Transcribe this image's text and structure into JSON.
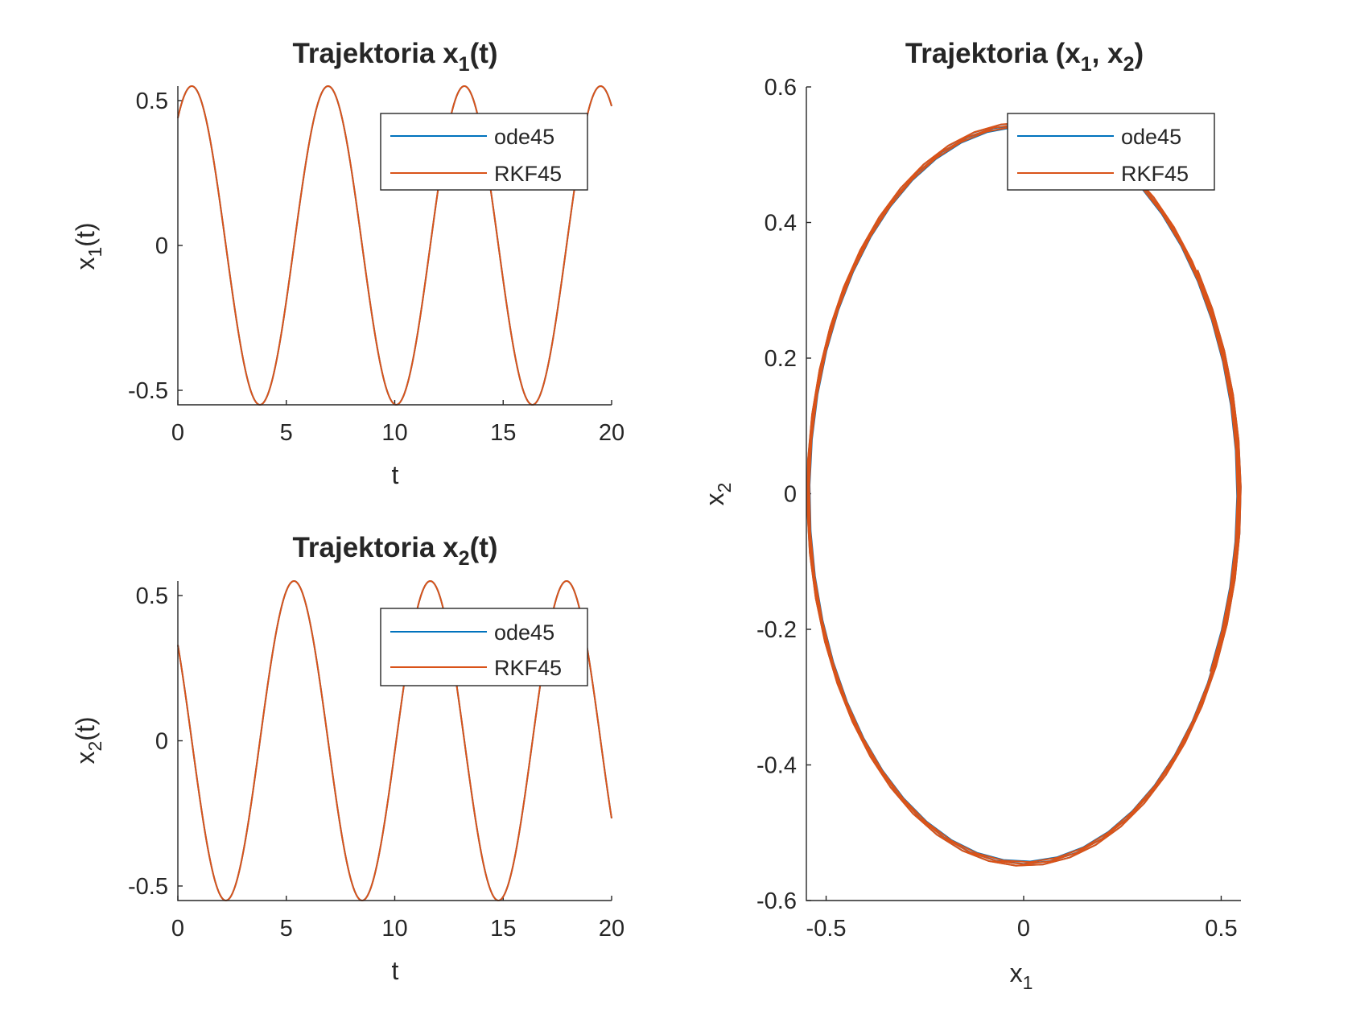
{
  "colors": {
    "ode45": "#0072BD",
    "RKF45": "#D95319",
    "axis": "#262626"
  },
  "chart_data": [
    {
      "type": "line",
      "title_main": "Trajektoria x",
      "title_sub": "1",
      "title_tail": "(t)",
      "xlabel": "t",
      "ylabel_main": "x",
      "ylabel_sub": "1",
      "ylabel_tail": "(t)",
      "xlim": [
        0,
        20
      ],
      "ylim": [
        -0.55,
        0.55
      ],
      "xticks": [
        0,
        5,
        10,
        15,
        20
      ],
      "xtick_labels": [
        "0",
        "5",
        "10",
        "15",
        "20"
      ],
      "yticks": [
        -0.5,
        0,
        0.5
      ],
      "ytick_labels": [
        "-0.5",
        "0",
        "0.5"
      ],
      "legend_position": "top-right",
      "signal": {
        "amplitude": 0.55,
        "omega": 1.0,
        "initial": 0.4,
        "initial_other": 0.3,
        "component": "x1"
      },
      "series": [
        {
          "name": "ode45",
          "color": "#0072BD"
        },
        {
          "name": "RKF45",
          "color": "#D95319"
        }
      ]
    },
    {
      "type": "line",
      "title_main": "Trajektoria x",
      "title_sub": "2",
      "title_tail": "(t)",
      "xlabel": "t",
      "ylabel_main": "x",
      "ylabel_sub": "2",
      "ylabel_tail": "(t)",
      "xlim": [
        0,
        20
      ],
      "ylim": [
        -0.55,
        0.55
      ],
      "xticks": [
        0,
        5,
        10,
        15,
        20
      ],
      "xtick_labels": [
        "0",
        "5",
        "10",
        "15",
        "20"
      ],
      "yticks": [
        -0.5,
        0,
        0.5
      ],
      "ytick_labels": [
        "-0.5",
        "0",
        "0.5"
      ],
      "legend_position": "top-right",
      "signal": {
        "amplitude": 0.55,
        "omega": 1.0,
        "initial": 0.4,
        "initial_other": 0.3,
        "component": "x2"
      },
      "series": [
        {
          "name": "ode45",
          "color": "#0072BD"
        },
        {
          "name": "RKF45",
          "color": "#D95319"
        }
      ]
    },
    {
      "type": "line",
      "title_main": "Trajektoria (x",
      "title_sub1": "1",
      "title_mid": ", x",
      "title_sub2": "2",
      "title_tail": ")",
      "xlabel_main": "x",
      "xlabel_sub": "1",
      "ylabel_main": "x",
      "ylabel_sub": "2",
      "xlim": [
        -0.55,
        0.55
      ],
      "ylim": [
        -0.6,
        0.6
      ],
      "xticks": [
        -0.5,
        0,
        0.5
      ],
      "xtick_labels": [
        "-0.5",
        "0",
        "0.5"
      ],
      "yticks": [
        -0.6,
        -0.4,
        -0.2,
        0,
        0.2,
        0.4,
        0.6
      ],
      "ytick_labels": [
        "-0.6",
        "-0.4",
        "-0.2",
        "0",
        "0.2",
        "0.4",
        "0.6"
      ],
      "legend_position": "top-right",
      "signal": {
        "amplitude": 0.55,
        "omega": 1.0,
        "initial": 0.4,
        "initial_other": 0.3,
        "t_end": 20
      },
      "series": [
        {
          "name": "ode45",
          "color": "#0072BD"
        },
        {
          "name": "RKF45",
          "color": "#D95319"
        }
      ]
    }
  ]
}
